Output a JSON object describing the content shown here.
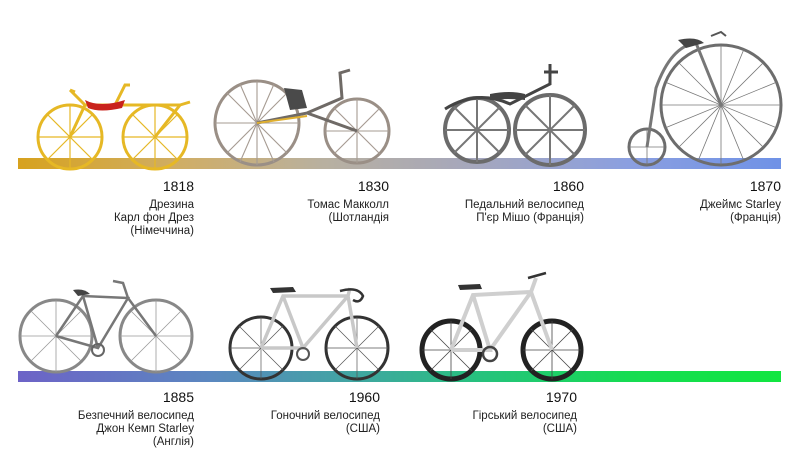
{
  "timeline_row_1": [
    {
      "year": "1818",
      "lines": [
        "Дрезина",
        "Карл фон Дрез",
        "(Німеччина)"
      ]
    },
    {
      "year": "1830",
      "lines": [
        "Томас Макколл",
        "(Шотландія"
      ]
    },
    {
      "year": "1860",
      "lines": [
        "Педальний велосипед",
        "П'єр Мішо (Франція)"
      ]
    },
    {
      "year": "1870",
      "lines": [
        "Джеймс Starley",
        "(Франція)"
      ]
    }
  ],
  "timeline_row_2": [
    {
      "year": "1885",
      "lines": [
        "Безпечний велосипед",
        "Джон Кемп Starley",
        "(Англія)"
      ]
    },
    {
      "year": "1960",
      "lines": [
        "Гоночний велосипед",
        "(США)"
      ]
    },
    {
      "year": "1970",
      "lines": [
        "Гірський велосипед",
        "(США)"
      ]
    }
  ],
  "icons": [
    "draisine-bicycle-icon",
    "maccall-velocipede-icon",
    "boneshaker-velocipede-icon",
    "penny-farthing-icon",
    "safety-bicycle-icon",
    "road-racing-bicycle-icon",
    "mountain-bike-icon"
  ],
  "colors": {
    "row1_start": "#d7a21e",
    "row1_end": "#6f92e6",
    "row2_start": "#6d63c7",
    "row2_end": "#11e640"
  }
}
